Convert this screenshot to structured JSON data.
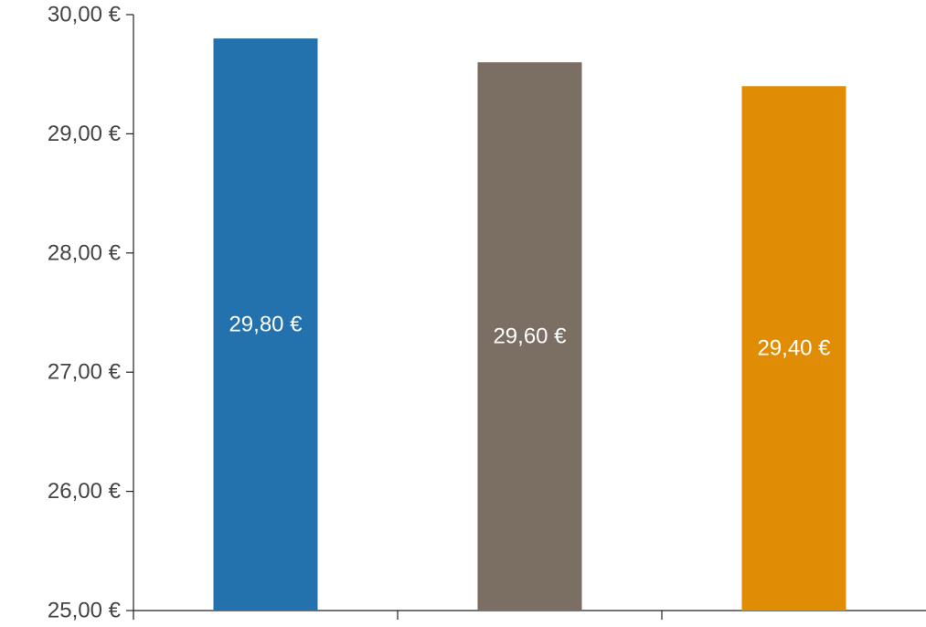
{
  "chart_data": {
    "type": "bar",
    "categories": [
      "",
      "",
      ""
    ],
    "values": [
      29.8,
      29.6,
      29.4
    ],
    "data_labels": [
      "29,80 €",
      "29,60 €",
      "29,40 €"
    ],
    "colors": [
      "#2472ad",
      "#7b6e62",
      "#e08c05"
    ],
    "title": "",
    "xlabel": "",
    "ylabel": "",
    "ylim": [
      25,
      30
    ],
    "yticks": [
      25,
      26,
      27,
      28,
      29,
      30
    ],
    "ytick_labels": [
      "25,00 €",
      "26,00 €",
      "27,00 €",
      "28,00 €",
      "29,00 €",
      "30,00 €"
    ],
    "grid": false,
    "legend": "none"
  }
}
